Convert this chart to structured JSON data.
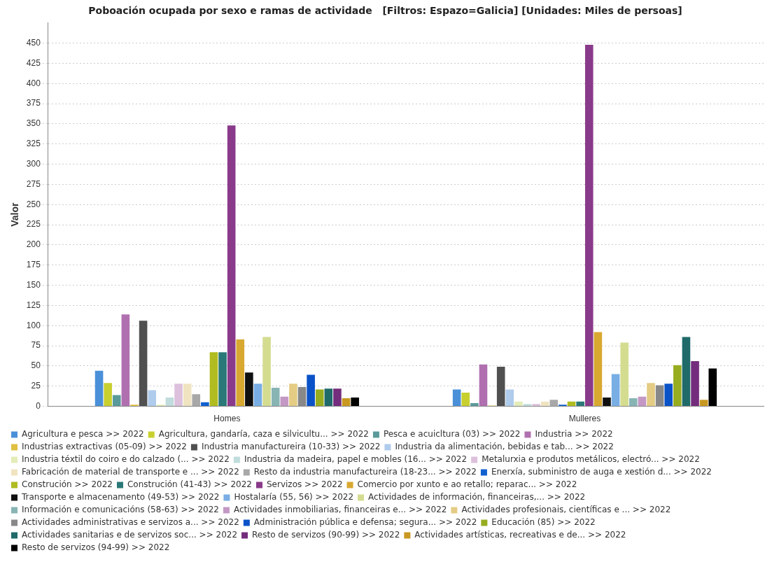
{
  "chart_data": {
    "type": "bar",
    "title": "Poboación ocupada por sexo e ramas de actividade   [Filtros: Espazo=Galicia] [Unidades: Miles de persoas]",
    "ylabel": "Valor",
    "categories": [
      "Homes",
      "Mulleres"
    ],
    "ylim": [
      0,
      475
    ],
    "yticks": [
      0,
      25,
      50,
      75,
      100,
      125,
      150,
      175,
      200,
      225,
      250,
      275,
      300,
      325,
      350,
      375,
      400,
      425,
      450
    ],
    "grid": "y",
    "legend": "bottom",
    "series": [
      {
        "name": "Agricultura e pesca >> 2022",
        "color": "#4a90d9",
        "values": [
          44,
          21
        ]
      },
      {
        "name": "Agricultura, gandaría, caza e silvicultu... >> 2022",
        "color": "#c8d030",
        "values": [
          29,
          17
        ]
      },
      {
        "name": "Pesca e acuicltura (03) >> 2022",
        "color": "#5a9a9a",
        "values": [
          14,
          4
        ]
      },
      {
        "name": "Industria >> 2022",
        "color": "#b070b0",
        "values": [
          114,
          52
        ]
      },
      {
        "name": "Industrias extractivas (05-09) >> 2022",
        "color": "#e0c040",
        "values": [
          2,
          1
        ]
      },
      {
        "name": "Industria manufactureira (10-33) >> 2022",
        "color": "#505050",
        "values": [
          106,
          49
        ]
      },
      {
        "name": "Industria da alimentación, bebidas e tab... >> 2022",
        "color": "#b0ccec",
        "values": [
          20,
          21
        ]
      },
      {
        "name": "Industria téxtil do coiro e do calzado (... >> 2022",
        "color": "#e4ecb8",
        "values": [
          2,
          6
        ]
      },
      {
        "name": "Industria da madeira, papel e mobles (16... >> 2022",
        "color": "#c0dcdc",
        "values": [
          11,
          3
        ]
      },
      {
        "name": "Metalurxia e produtos metálicos, electró... >> 2022",
        "color": "#dcc0dc",
        "values": [
          28,
          3
        ]
      },
      {
        "name": "Fabricación de material de transporte e ... >> 2022",
        "color": "#f0e4c0",
        "values": [
          28,
          6
        ]
      },
      {
        "name": "Resto da industria manufactureira (18-23... >> 2022",
        "color": "#a8a8a8",
        "values": [
          15,
          8
        ]
      },
      {
        "name": "Enerxía, subministro de auga e xestión d... >> 2022",
        "color": "#1060d0",
        "values": [
          5,
          2
        ]
      },
      {
        "name": "Construción >> 2022",
        "color": "#b0bc20",
        "values": [
          67,
          6
        ]
      },
      {
        "name": "Construción (41-43) >> 2022",
        "color": "#2a7878",
        "values": [
          67,
          6
        ]
      },
      {
        "name": "Servizos >> 2022",
        "color": "#8a3a8a",
        "values": [
          348,
          448
        ]
      },
      {
        "name": "Comercio por xunto e ao retallo; reparac... >> 2022",
        "color": "#d8a830",
        "values": [
          83,
          92
        ]
      },
      {
        "name": "Transporte e almacenamento (49-53) >> 2022",
        "color": "#101010",
        "values": [
          42,
          11
        ]
      },
      {
        "name": "Hostalaría (55, 56) >> 2022",
        "color": "#78aee4",
        "values": [
          28,
          40
        ]
      },
      {
        "name": "Actividades de información, financeiras,... >> 2022",
        "color": "#d4dc90",
        "values": [
          86,
          79
        ]
      },
      {
        "name": "Información e comunicacións (58-63) >> 2022",
        "color": "#88b4b4",
        "values": [
          23,
          10
        ]
      },
      {
        "name": "Actividades inmobiliarias, financeiras e... >> 2022",
        "color": "#c498c4",
        "values": [
          12,
          12
        ]
      },
      {
        "name": "Actividades profesionais, científicas e ... >> 2022",
        "color": "#e4cc84",
        "values": [
          28,
          29
        ]
      },
      {
        "name": "Actividades administrativas e servizos a... >> 2022",
        "color": "#888888",
        "values": [
          24,
          26
        ]
      },
      {
        "name": "Administración pública e defensa; segura... >> 2022",
        "color": "#0a52c8",
        "values": [
          39,
          28
        ]
      },
      {
        "name": "Educación (85) >> 2022",
        "color": "#98ac20",
        "values": [
          21,
          51
        ]
      },
      {
        "name": "Actividades sanitarias e de servizos soc... >> 2022",
        "color": "#206a6a",
        "values": [
          22,
          86
        ]
      },
      {
        "name": "Resto de servizos (90-99) >> 2022",
        "color": "#742c7c",
        "values": [
          22,
          56
        ]
      },
      {
        "name": "Actividades artísticas, recreativas e de... >> 2022",
        "color": "#c89820",
        "values": [
          10,
          8
        ]
      },
      {
        "name": "Resto de servizos (94-99) >> 2022",
        "color": "#000000",
        "values": [
          11,
          47
        ]
      }
    ]
  }
}
